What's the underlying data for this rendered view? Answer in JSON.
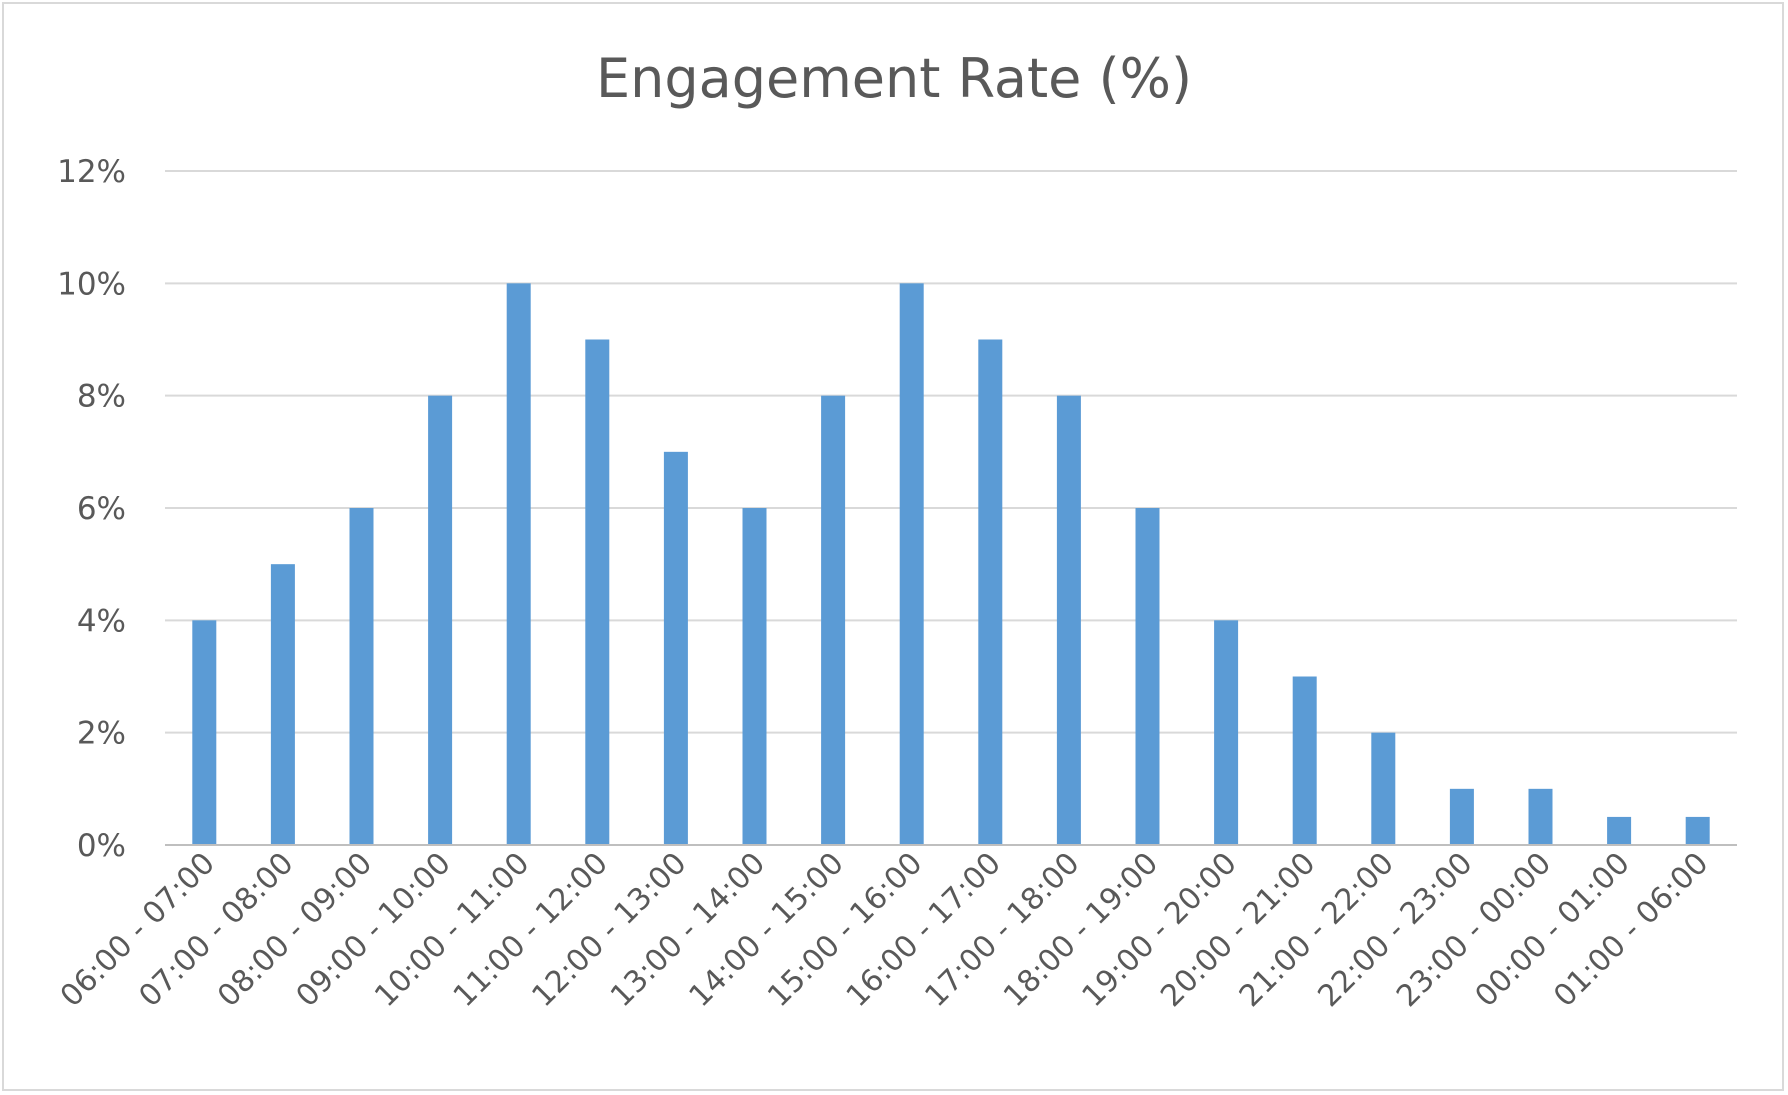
{
  "chart_data": {
    "type": "bar",
    "title": "Engagement Rate (%)",
    "xlabel": "",
    "ylabel": "",
    "ylim": [
      0,
      12
    ],
    "y_ticks": [
      0,
      2,
      4,
      6,
      8,
      10,
      12
    ],
    "y_tick_labels": [
      "0%",
      "2%",
      "4%",
      "6%",
      "8%",
      "10%",
      "12%"
    ],
    "grid": true,
    "legend": "none",
    "bar_color": "#5b9bd5",
    "categories": [
      "06:00 - 07:00",
      "07:00 - 08:00",
      "08:00 - 09:00",
      "09:00 - 10:00",
      "10:00 - 11:00",
      "11:00 - 12:00",
      "12:00 - 13:00",
      "13:00 - 14:00",
      "14:00 - 15:00",
      "15:00 - 16:00",
      "16:00 - 17:00",
      "17:00 - 18:00",
      "18:00 - 19:00",
      "19:00 - 20:00",
      "20:00 - 21:00",
      "21:00 - 22:00",
      "22:00 - 23:00",
      "23:00 - 00:00",
      "00:00 - 01:00",
      "01:00 - 06:00"
    ],
    "values": [
      4,
      5,
      6,
      8,
      10,
      9,
      7,
      6,
      8,
      10,
      9,
      8,
      6,
      4,
      3,
      2,
      1,
      1,
      0.5,
      0.5
    ]
  }
}
